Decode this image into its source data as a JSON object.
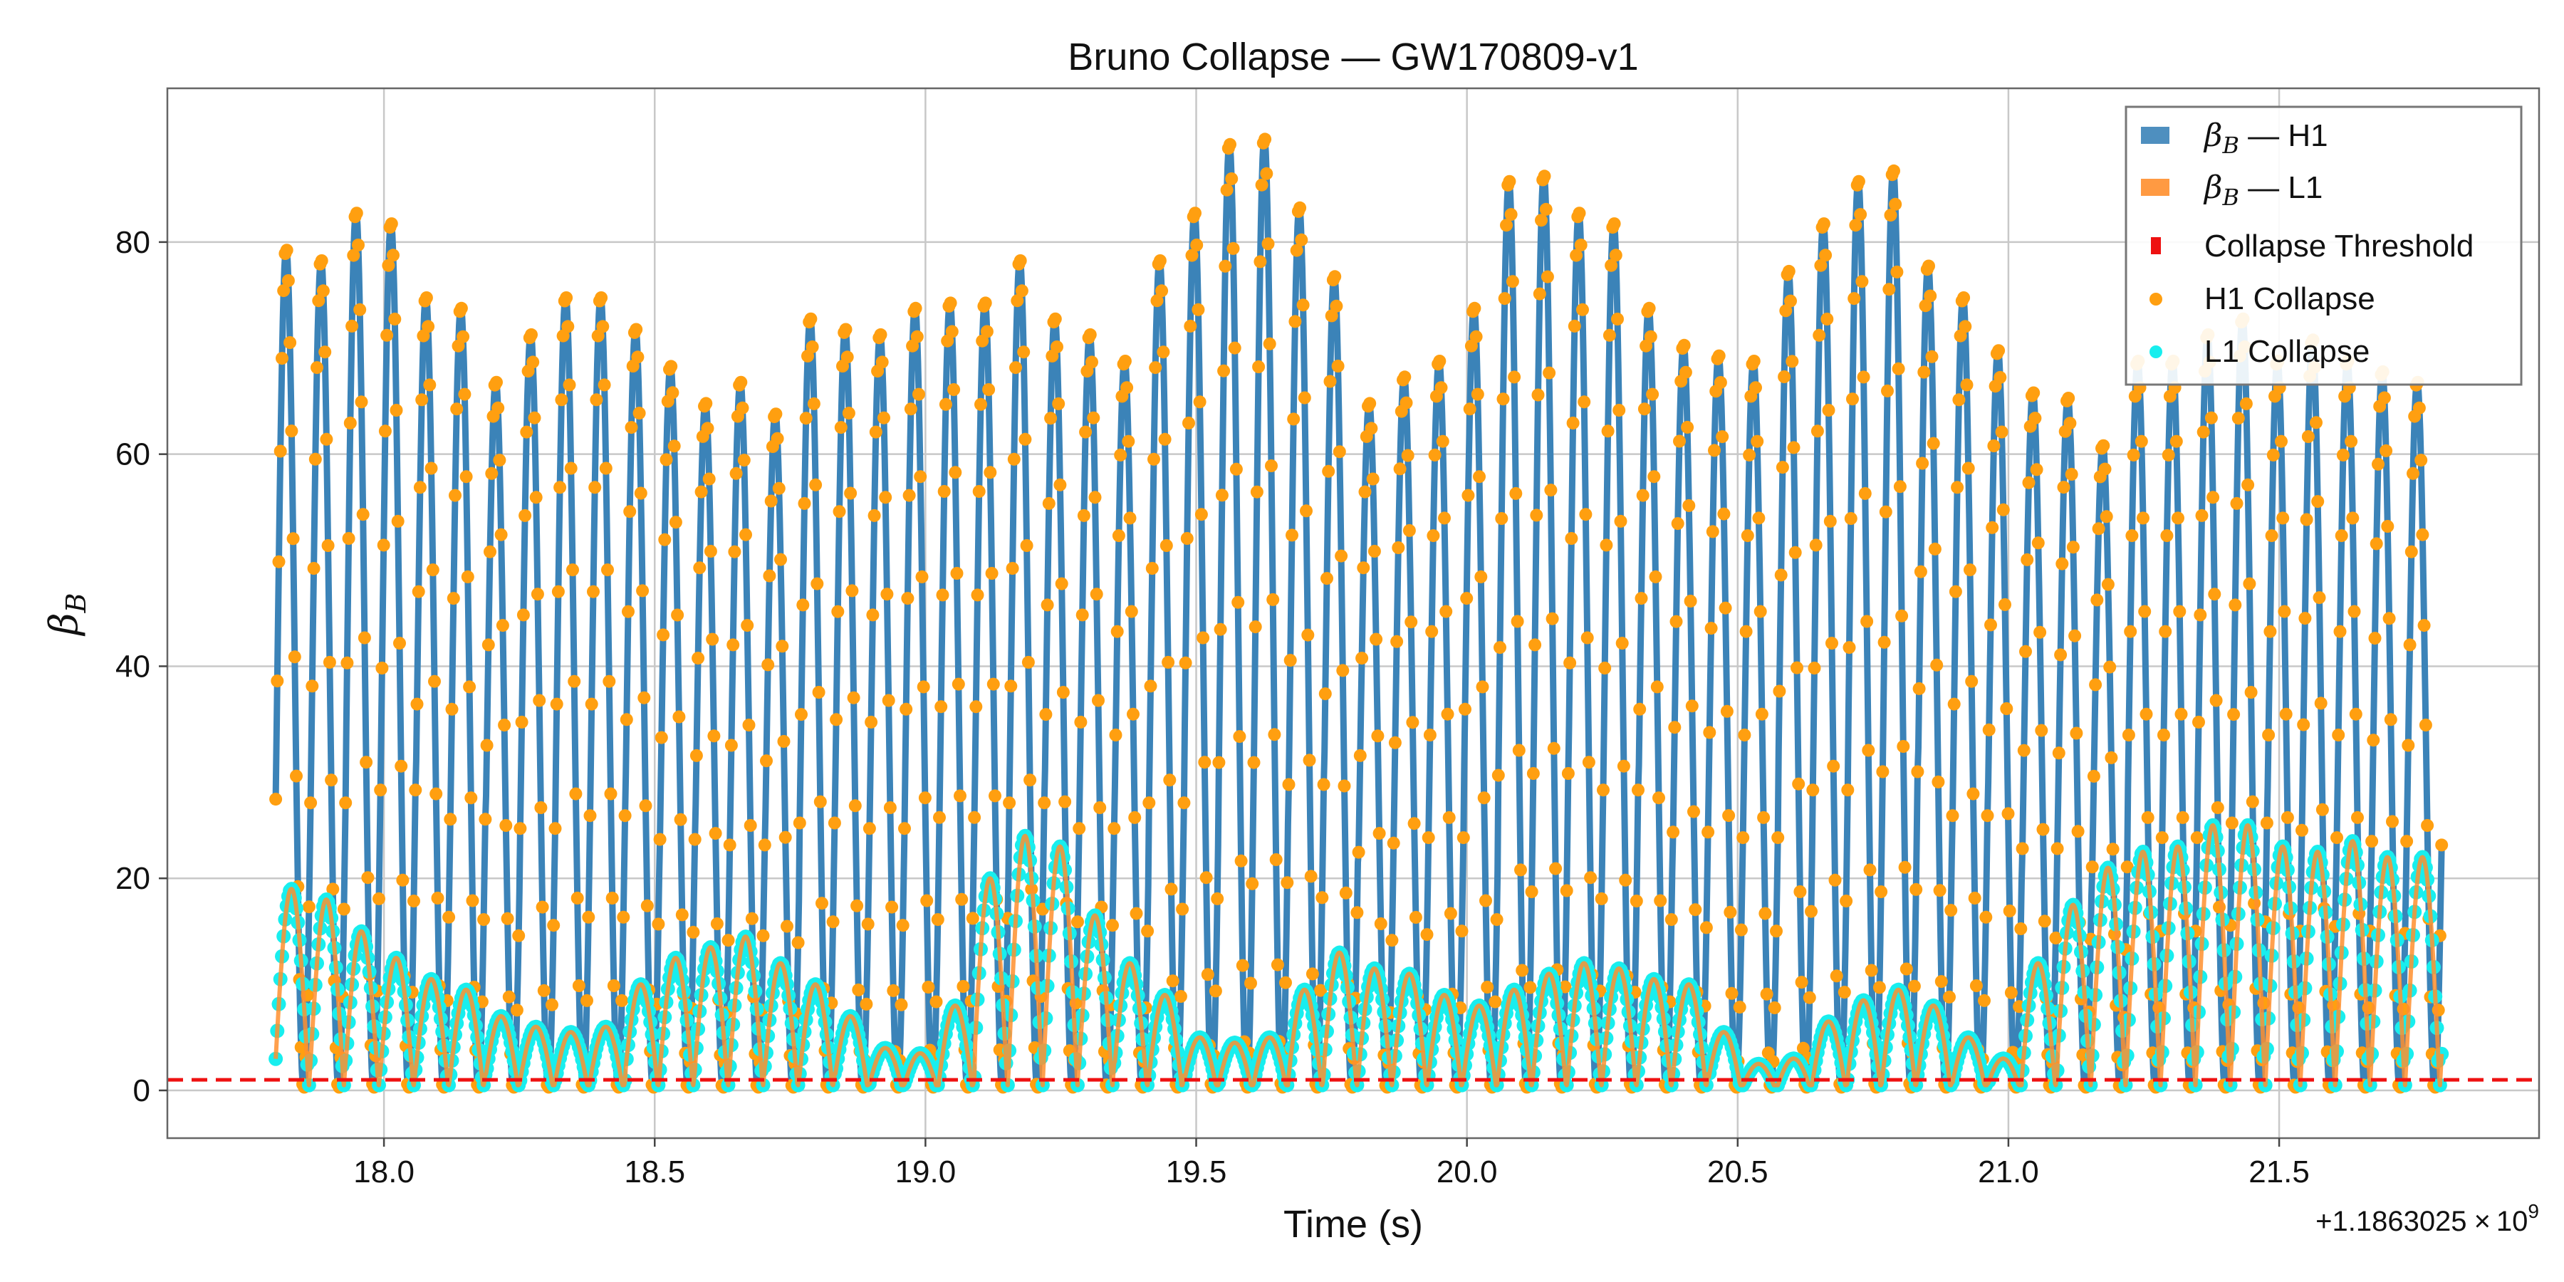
{
  "chart_data": {
    "type": "line",
    "title": "Bruno Collapse — GW170809-v1",
    "xlabel": "Time (s)",
    "ylabel_main": "β",
    "ylabel_sub": "B",
    "x_offset_label": "+1.1863025",
    "x_offset_times": "×",
    "x_offset_base": "10",
    "x_offset_exp": "9",
    "xlim": [
      17.6,
      21.98
    ],
    "ylim": [
      -4.5,
      94.5
    ],
    "x_ticks": [
      18.0,
      18.5,
      19.0,
      19.5,
      20.0,
      20.5,
      21.0,
      21.5
    ],
    "x_tick_labels": [
      "18.0",
      "18.5",
      "19.0",
      "19.5",
      "20.0",
      "20.5",
      "21.0",
      "21.5"
    ],
    "y_ticks": [
      0,
      20,
      40,
      60,
      80
    ],
    "y_tick_labels": [
      "0",
      "20",
      "40",
      "60",
      "80"
    ],
    "grid": true,
    "legend_position": "top-right",
    "x_range_data": [
      17.8,
      21.8
    ],
    "threshold": 1.0,
    "oscillation_cycles": 62,
    "h1_peaks": [
      79.5,
      78.5,
      83,
      82,
      75,
      74,
      67,
      71.5,
      75,
      75,
      72,
      68.5,
      65,
      67,
      64,
      73,
      72,
      71.5,
      74,
      74.5,
      74.5,
      78.5,
      73,
      71.5,
      69,
      78.5,
      83,
      89.5,
      90,
      83.5,
      77,
      65,
      67.5,
      69,
      74,
      86,
      86.5,
      83,
      82,
      74,
      70.5,
      69.5,
      69,
      77.5,
      82,
      86,
      87,
      78,
      75,
      70,
      66,
      65.5,
      61,
      69,
      69,
      71.5,
      73,
      69,
      71,
      69,
      68,
      67
    ],
    "l1_peaks": [
      19,
      18,
      15,
      12.5,
      10.5,
      9.5,
      7,
      6,
      5.5,
      6,
      10,
      12.5,
      13.5,
      14.5,
      12,
      10,
      7,
      4,
      3.5,
      8,
      20,
      24,
      23,
      16.5,
      12,
      9,
      5,
      4.5,
      5,
      9.5,
      13,
      11.5,
      11,
      9,
      8,
      9.5,
      11,
      12,
      11.5,
      10.5,
      10,
      5.5,
      2.5,
      3,
      6.5,
      8.5,
      9.5,
      8,
      5,
      3,
      12,
      17.5,
      21,
      22.5,
      23,
      25,
      25,
      23,
      22.5,
      23.5,
      22,
      22
    ],
    "series": [
      {
        "name_main": "β",
        "name_sub": "B",
        "name_rest": " — H1",
        "color": "#3b83b8"
      },
      {
        "name_main": "β",
        "name_sub": "B",
        "name_rest": " — L1",
        "color": "#ff8f2e"
      },
      {
        "name": "Collapse Threshold",
        "color": "#ee1111"
      },
      {
        "name": "H1 Collapse",
        "color": "#ff9f10"
      },
      {
        "name": "L1 Collapse",
        "color": "#18eeee"
      }
    ]
  }
}
